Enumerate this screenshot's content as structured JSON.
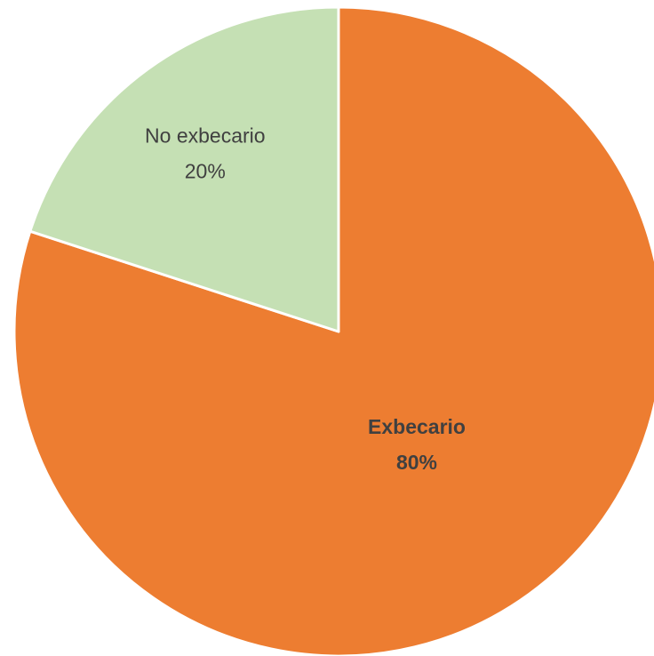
{
  "chart_data": {
    "type": "pie",
    "categories": [
      "Exbecario",
      "No exbecario"
    ],
    "values": [
      80,
      20
    ],
    "labels": [
      "80%",
      "20%"
    ],
    "colors": [
      "#ED7D31",
      "#C5E0B4"
    ],
    "start_angle_deg": 0,
    "direction": "clockwise",
    "legend": "none"
  }
}
